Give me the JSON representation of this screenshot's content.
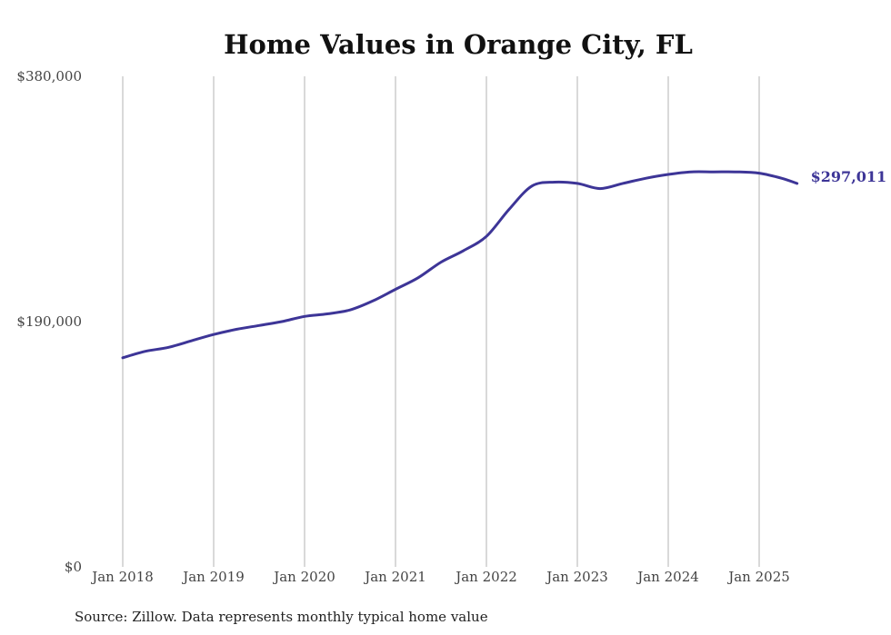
{
  "chart_data": {
    "type": "line",
    "title": "Home Values in Orange City, FL",
    "xlabel": "",
    "ylabel": "",
    "x_ticks": [
      "Jan 2018",
      "Jan 2019",
      "Jan 2020",
      "Jan 2021",
      "Jan 2022",
      "Jan 2023",
      "Jan 2024",
      "Jan 2025"
    ],
    "y_ticks": [
      "$0",
      "$190,000",
      "$380,000"
    ],
    "ylim": [
      0,
      380000
    ],
    "xlim": [
      "2018-01",
      "2025-06"
    ],
    "grid": "vertical",
    "line_color": "#3d3597",
    "end_label": "$297,011",
    "series": [
      {
        "x": [
          "2018-01",
          "2018-04",
          "2018-07",
          "2018-10",
          "2019-01",
          "2019-04",
          "2019-07",
          "2019-10",
          "2020-01",
          "2020-04",
          "2020-07",
          "2020-10",
          "2021-01",
          "2021-04",
          "2021-07",
          "2021-10",
          "2022-01",
          "2022-04",
          "2022-07",
          "2022-10",
          "2023-01",
          "2023-04",
          "2023-07",
          "2023-10",
          "2024-01",
          "2024-04",
          "2024-07",
          "2024-10",
          "2025-01",
          "2025-04",
          "2025-06"
        ],
        "values": [
          162000,
          167000,
          170000,
          175000,
          180000,
          184000,
          187000,
          190000,
          194000,
          196000,
          199000,
          206000,
          215000,
          224000,
          236000,
          245000,
          256000,
          277000,
          295000,
          298000,
          297000,
          293000,
          297000,
          301000,
          304000,
          306000,
          306000,
          306000,
          305000,
          301000,
          297011
        ]
      }
    ]
  },
  "source_note": "Source: Zillow. Data represents monthly typical home value"
}
